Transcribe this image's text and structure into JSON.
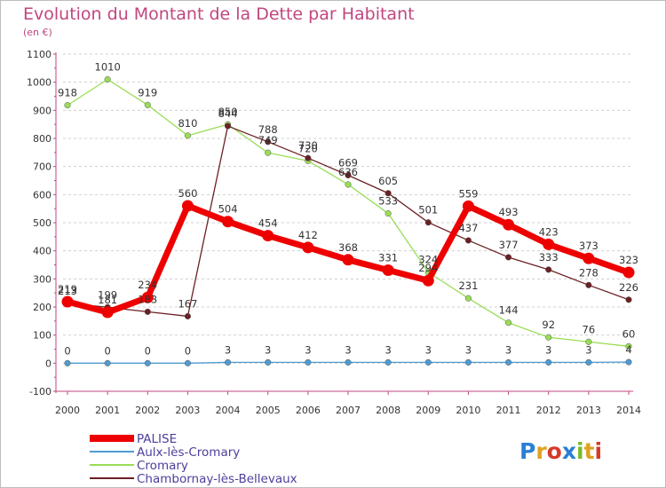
{
  "chart_data": {
    "type": "line",
    "title": "Evolution du Montant de la Dette par Habitant",
    "subtitle": "(en €)",
    "xlabel": "",
    "ylabel": "",
    "ylim": [
      -100,
      1100
    ],
    "yticks": [
      -100,
      0,
      100,
      200,
      300,
      400,
      500,
      600,
      700,
      800,
      900,
      1000,
      1100
    ],
    "x": [
      "2000",
      "2001",
      "2002",
      "2003",
      "2004",
      "2005",
      "2006",
      "2007",
      "2008",
      "2009",
      "2010",
      "2011",
      "2012",
      "2013",
      "2014"
    ],
    "series": [
      {
        "name": "PALISE",
        "color": "#ee0000",
        "values": [
          219,
          181,
          234,
          560,
          504,
          454,
          412,
          368,
          331,
          294,
          559,
          493,
          423,
          373,
          323
        ],
        "labels": [
          "219",
          "181",
          "234",
          "560",
          "504",
          "454",
          "412",
          "368",
          "331",
          "294",
          "559",
          "493",
          "423",
          "373",
          "323"
        ]
      },
      {
        "name": "Aulx-lès-Cromary",
        "color": "#4f9bd1",
        "values": [
          0,
          0,
          0,
          0,
          3,
          3,
          3,
          3,
          3,
          3,
          3,
          3,
          3,
          3,
          4
        ],
        "labels": [
          "0",
          "0",
          "0",
          "0",
          "3",
          "3",
          "3",
          "3",
          "3",
          "3",
          "3",
          "3",
          "3",
          "3",
          "4"
        ]
      },
      {
        "name": "Cromary",
        "color": "#99dd55",
        "values": [
          918,
          1010,
          919,
          810,
          850,
          749,
          720,
          636,
          533,
          324,
          231,
          144,
          92,
          76,
          60
        ],
        "labels": [
          "918",
          "1010",
          "919",
          "810",
          "850",
          "749",
          "720",
          "636",
          "533",
          "324",
          "231",
          "144",
          "92",
          "76",
          "60"
        ]
      },
      {
        "name": "Chambornay-lès-Bellevaux",
        "color": "#6b2024",
        "values": [
          213,
          199,
          183,
          167,
          844,
          788,
          730,
          669,
          605,
          501,
          437,
          377,
          333,
          278,
          226
        ],
        "labels": [
          "213",
          "199",
          "183",
          "167",
          "844",
          "788",
          "730",
          "669",
          "605",
          "501",
          "437",
          "377",
          "333",
          "278",
          "226"
        ]
      }
    ]
  },
  "brand": {
    "p": "P",
    "r": "r",
    "o": "o",
    "x": "x",
    "i": "i",
    "t": "t",
    "i2": "i"
  }
}
